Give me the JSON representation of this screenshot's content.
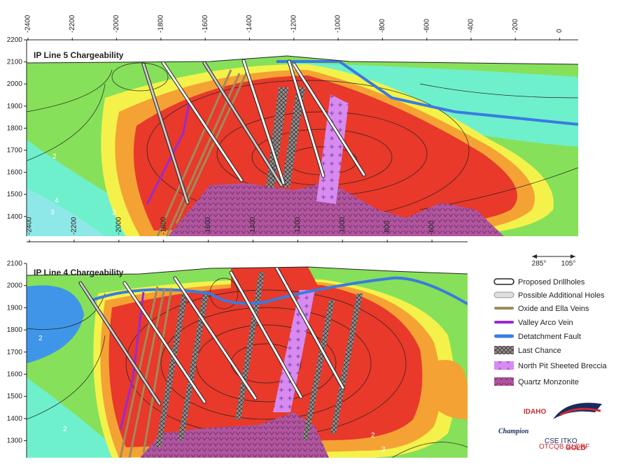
{
  "panels": [
    {
      "title": "IP Line 5 Chargeability",
      "x_ticks": [
        "-2400",
        "-2200",
        "-2000",
        "-1800",
        "-1600",
        "-1400",
        "-1200",
        "-1000",
        "-800",
        "-600",
        "-400",
        "-200",
        "0"
      ],
      "y_ticks": [
        "2200",
        "2100",
        "2000",
        "1900",
        "1800",
        "1700",
        "1600",
        "1500",
        "1400"
      ],
      "contour_labels": [
        "2",
        "4",
        "3",
        "3"
      ]
    },
    {
      "title": "IP Line 4 Chargeability",
      "x_ticks": [
        "-2400",
        "-2200",
        "-2000",
        "-1800",
        "-1600",
        "-1400",
        "-1200",
        "-1000",
        "-800",
        "-600"
      ],
      "y_ticks": [
        "2100",
        "2000",
        "1900",
        "1800",
        "1700",
        "1600",
        "1500",
        "1400",
        "1300"
      ],
      "contour_labels": [
        "2",
        "2",
        "2",
        "3"
      ]
    }
  ],
  "orientation": {
    "left": "285°",
    "right": "105°"
  },
  "legend": [
    {
      "label": "Proposed Drillholes"
    },
    {
      "label": "Possible Additional Holes"
    },
    {
      "label": "Oxide and Ella Veins"
    },
    {
      "label": "Valley Arco Vein"
    },
    {
      "label": "Detatchment Fault"
    },
    {
      "label": "Last Chance"
    },
    {
      "label": "North Pit Sheeted Breccia"
    },
    {
      "label": "Quartz Monzonite"
    }
  ],
  "logo": {
    "top": "IDAHO",
    "main": "Champion",
    "bottom": "GOLD",
    "line1": "CSE ITKO",
    "line2": "OTCQB GLDRF"
  }
}
